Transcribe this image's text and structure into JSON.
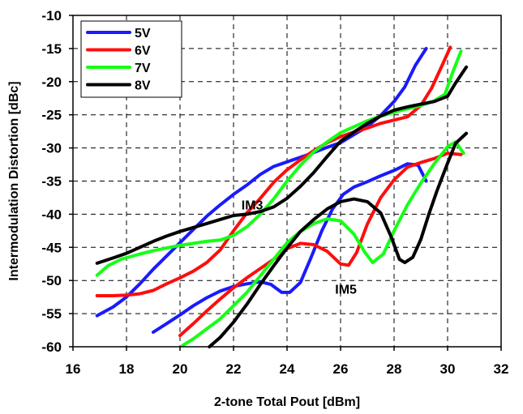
{
  "chart_data": {
    "type": "line",
    "title": "",
    "xlabel": "2-tone Total Pout  [dBm]",
    "ylabel": "Intermodulation Distortion  [dBc]",
    "xlim": [
      16,
      32
    ],
    "ylim": [
      -60,
      -10
    ],
    "x_ticks": [
      "16",
      "18",
      "20",
      "22",
      "24",
      "26",
      "28",
      "30",
      "32"
    ],
    "y_ticks": [
      "-10",
      "-15",
      "-20",
      "-25",
      "-30",
      "-35",
      "-40",
      "-45",
      "-50",
      "-55",
      "-60"
    ],
    "x_tick_values": [
      16,
      18,
      20,
      22,
      24,
      26,
      28,
      30,
      32
    ],
    "y_tick_values": [
      -10,
      -15,
      -20,
      -25,
      -30,
      -35,
      -40,
      -45,
      -50,
      -55,
      -60
    ],
    "grid": true,
    "legend_position": "top-left",
    "annotations": [
      {
        "text": "IM3",
        "x": 22.7,
        "y": -39.3
      },
      {
        "text": "IM5",
        "x": 26.2,
        "y": -52.0
      }
    ],
    "series": [
      {
        "name": "5V",
        "color": "#1a1aff",
        "curves": [
          [
            [
              16.9,
              -55.3
            ],
            [
              17.5,
              -54.0
            ],
            [
              18.0,
              -52.5
            ],
            [
              18.5,
              -50.5
            ],
            [
              19.0,
              -48.3
            ],
            [
              19.5,
              -46.3
            ],
            [
              20.0,
              -44.3
            ],
            [
              20.5,
              -42.3
            ],
            [
              21.0,
              -40.3
            ],
            [
              21.5,
              -38.6
            ],
            [
              22.0,
              -37.0
            ],
            [
              22.5,
              -35.6
            ],
            [
              23.0,
              -34.0
            ],
            [
              23.5,
              -32.8
            ],
            [
              24.0,
              -32.1
            ],
            [
              24.5,
              -31.4
            ],
            [
              25.0,
              -30.7
            ],
            [
              25.5,
              -29.9
            ],
            [
              26.0,
              -29.2
            ],
            [
              26.5,
              -28.0
            ],
            [
              27.0,
              -26.8
            ],
            [
              27.5,
              -25.1
            ],
            [
              28.0,
              -23.0
            ],
            [
              28.4,
              -20.8
            ],
            [
              28.8,
              -17.5
            ],
            [
              29.2,
              -15.0
            ]
          ],
          [
            [
              19.0,
              -57.8
            ],
            [
              19.5,
              -56.5
            ],
            [
              20.0,
              -55.2
            ],
            [
              20.5,
              -53.8
            ],
            [
              21.0,
              -52.6
            ],
            [
              21.5,
              -51.6
            ],
            [
              22.0,
              -50.9
            ],
            [
              22.5,
              -50.5
            ],
            [
              23.0,
              -50.2
            ],
            [
              23.4,
              -50.6
            ],
            [
              23.8,
              -51.8
            ],
            [
              24.1,
              -51.8
            ],
            [
              24.5,
              -50.3
            ],
            [
              24.9,
              -46.5
            ],
            [
              25.3,
              -42.5
            ],
            [
              25.7,
              -39.2
            ],
            [
              26.1,
              -37.0
            ],
            [
              26.5,
              -35.9
            ],
            [
              27.0,
              -35.1
            ],
            [
              27.5,
              -34.2
            ],
            [
              28.0,
              -33.4
            ],
            [
              28.5,
              -32.4
            ],
            [
              28.9,
              -32.6
            ],
            [
              29.2,
              -35.0
            ]
          ]
        ]
      },
      {
        "name": "6V",
        "color": "#ff0d0d",
        "curves": [
          [
            [
              16.9,
              -52.3
            ],
            [
              17.5,
              -52.3
            ],
            [
              18.0,
              -52.2
            ],
            [
              18.5,
              -52.0
            ],
            [
              19.0,
              -51.5
            ],
            [
              19.5,
              -50.5
            ],
            [
              20.0,
              -49.6
            ],
            [
              20.5,
              -48.6
            ],
            [
              21.0,
              -47.3
            ],
            [
              21.5,
              -45.4
            ],
            [
              22.0,
              -42.5
            ],
            [
              22.5,
              -39.8
            ],
            [
              23.0,
              -37.6
            ],
            [
              23.5,
              -35.2
            ],
            [
              24.0,
              -33.3
            ],
            [
              24.5,
              -31.8
            ],
            [
              25.0,
              -30.4
            ],
            [
              25.5,
              -29.2
            ],
            [
              26.0,
              -28.3
            ],
            [
              26.5,
              -27.6
            ],
            [
              27.0,
              -27.0
            ],
            [
              27.5,
              -26.3
            ],
            [
              28.0,
              -25.8
            ],
            [
              28.5,
              -25.3
            ],
            [
              29.0,
              -23.6
            ],
            [
              29.4,
              -21.0
            ],
            [
              29.8,
              -17.5
            ],
            [
              30.1,
              -14.8
            ]
          ],
          [
            [
              20.0,
              -58.3
            ],
            [
              20.5,
              -56.5
            ],
            [
              21.0,
              -54.6
            ],
            [
              21.5,
              -52.8
            ],
            [
              22.0,
              -51.1
            ],
            [
              22.5,
              -49.6
            ],
            [
              23.0,
              -48.2
            ],
            [
              23.5,
              -46.8
            ],
            [
              24.0,
              -45.2
            ],
            [
              24.5,
              -44.4
            ],
            [
              25.0,
              -44.6
            ],
            [
              25.5,
              -45.6
            ],
            [
              26.0,
              -47.5
            ],
            [
              26.3,
              -47.7
            ],
            [
              26.6,
              -45.8
            ],
            [
              27.0,
              -41.5
            ],
            [
              27.5,
              -37.5
            ],
            [
              28.0,
              -34.8
            ],
            [
              28.5,
              -32.9
            ],
            [
              29.0,
              -32.2
            ],
            [
              29.5,
              -31.6
            ],
            [
              30.0,
              -30.8
            ],
            [
              30.5,
              -31.0
            ]
          ]
        ]
      },
      {
        "name": "7V",
        "color": "#16ff16",
        "curves": [
          [
            [
              16.9,
              -49.2
            ],
            [
              17.3,
              -47.8
            ],
            [
              17.8,
              -46.8
            ],
            [
              18.5,
              -46.0
            ],
            [
              19.0,
              -45.5
            ],
            [
              19.5,
              -45.1
            ],
            [
              20.0,
              -44.7
            ],
            [
              20.5,
              -44.4
            ],
            [
              21.0,
              -44.1
            ],
            [
              21.5,
              -43.9
            ],
            [
              22.0,
              -43.2
            ],
            [
              22.5,
              -41.9
            ],
            [
              23.0,
              -40.0
            ],
            [
              23.5,
              -37.7
            ],
            [
              24.0,
              -35.0
            ],
            [
              24.5,
              -32.6
            ],
            [
              25.0,
              -30.6
            ],
            [
              25.5,
              -29.1
            ],
            [
              26.0,
              -27.7
            ],
            [
              26.5,
              -26.8
            ],
            [
              27.0,
              -25.9
            ],
            [
              27.5,
              -25.2
            ],
            [
              28.0,
              -24.6
            ],
            [
              28.5,
              -24.1
            ],
            [
              29.0,
              -23.6
            ],
            [
              29.5,
              -22.9
            ],
            [
              29.9,
              -21.9
            ],
            [
              30.2,
              -18.5
            ],
            [
              30.5,
              -15.4
            ]
          ],
          [
            [
              20.1,
              -59.8
            ],
            [
              20.5,
              -58.8
            ],
            [
              21.0,
              -57.3
            ],
            [
              21.5,
              -55.8
            ],
            [
              22.0,
              -53.8
            ],
            [
              22.5,
              -51.8
            ],
            [
              23.0,
              -49.3
            ],
            [
              23.5,
              -46.8
            ],
            [
              24.0,
              -44.3
            ],
            [
              24.5,
              -42.6
            ],
            [
              25.0,
              -41.4
            ],
            [
              25.5,
              -40.7
            ],
            [
              26.0,
              -41.0
            ],
            [
              26.5,
              -43.0
            ],
            [
              26.9,
              -45.7
            ],
            [
              27.2,
              -47.3
            ],
            [
              27.6,
              -46.0
            ],
            [
              28.0,
              -42.5
            ],
            [
              28.5,
              -38.6
            ],
            [
              29.0,
              -35.3
            ],
            [
              29.5,
              -32.4
            ],
            [
              30.0,
              -29.8
            ],
            [
              30.3,
              -29.1
            ],
            [
              30.6,
              -30.8
            ]
          ]
        ]
      },
      {
        "name": "8V",
        "color": "#000000",
        "curves": [
          [
            [
              16.9,
              -47.4
            ],
            [
              17.5,
              -46.6
            ],
            [
              18.0,
              -45.9
            ],
            [
              18.5,
              -45.0
            ],
            [
              19.0,
              -44.1
            ],
            [
              19.5,
              -43.3
            ],
            [
              20.0,
              -42.6
            ],
            [
              20.5,
              -42.0
            ],
            [
              21.0,
              -41.4
            ],
            [
              21.5,
              -40.8
            ],
            [
              22.0,
              -40.2
            ],
            [
              22.5,
              -40.0
            ],
            [
              23.0,
              -39.6
            ],
            [
              23.5,
              -38.9
            ],
            [
              24.0,
              -37.6
            ],
            [
              24.5,
              -35.8
            ],
            [
              25.0,
              -33.7
            ],
            [
              25.5,
              -31.3
            ],
            [
              26.0,
              -29.0
            ],
            [
              26.5,
              -27.6
            ],
            [
              27.0,
              -26.3
            ],
            [
              27.5,
              -25.2
            ],
            [
              28.0,
              -24.3
            ],
            [
              28.5,
              -23.8
            ],
            [
              29.0,
              -23.4
            ],
            [
              29.5,
              -23.0
            ],
            [
              30.0,
              -22.2
            ],
            [
              30.3,
              -20.2
            ],
            [
              30.7,
              -17.8
            ]
          ],
          [
            [
              21.1,
              -60.0
            ],
            [
              21.5,
              -58.6
            ],
            [
              22.0,
              -56.3
            ],
            [
              22.5,
              -53.6
            ],
            [
              23.0,
              -50.6
            ],
            [
              23.5,
              -47.8
            ],
            [
              24.0,
              -45.1
            ],
            [
              24.5,
              -42.6
            ],
            [
              25.0,
              -40.8
            ],
            [
              25.5,
              -39.2
            ],
            [
              26.0,
              -38.1
            ],
            [
              26.5,
              -37.7
            ],
            [
              27.0,
              -38.1
            ],
            [
              27.5,
              -39.8
            ],
            [
              27.9,
              -43.5
            ],
            [
              28.2,
              -46.8
            ],
            [
              28.4,
              -47.3
            ],
            [
              28.7,
              -46.5
            ],
            [
              29.0,
              -43.8
            ],
            [
              29.3,
              -40.0
            ],
            [
              29.6,
              -36.5
            ],
            [
              30.0,
              -32.3
            ],
            [
              30.3,
              -29.3
            ],
            [
              30.7,
              -27.8
            ]
          ]
        ]
      }
    ]
  }
}
